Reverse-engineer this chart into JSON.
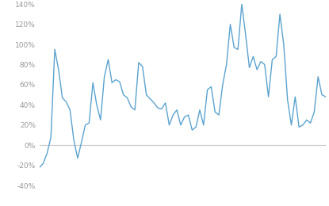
{
  "line_color": "#5ba3d0",
  "background_color": "#ffffff",
  "ylim": [
    -0.44,
    0.148
  ],
  "yticks": [
    -0.4,
    -0.2,
    0.0,
    0.2,
    0.4,
    0.6,
    0.8,
    1.0,
    1.2,
    1.4
  ],
  "zero_line_color": "#c8c8c8",
  "line_width": 1.0,
  "y_values": [
    -0.22,
    -0.18,
    -0.08,
    0.08,
    0.95,
    0.75,
    0.47,
    0.43,
    0.35,
    0.05,
    -0.13,
    0.03,
    0.2,
    0.22,
    0.62,
    0.4,
    0.25,
    0.68,
    0.85,
    0.62,
    0.65,
    0.63,
    0.5,
    0.47,
    0.38,
    0.35,
    0.82,
    0.78,
    0.5,
    0.46,
    0.42,
    0.37,
    0.36,
    0.42,
    0.2,
    0.3,
    0.35,
    0.2,
    0.28,
    0.3,
    0.15,
    0.18,
    0.35,
    0.2,
    0.55,
    0.58,
    0.33,
    0.3,
    0.6,
    0.8,
    1.2,
    0.97,
    0.95,
    1.4,
    1.1,
    0.77,
    0.88,
    0.75,
    0.83,
    0.8,
    0.48,
    0.85,
    0.88,
    1.3,
    1.0,
    0.45,
    0.2,
    0.48,
    0.18,
    0.2,
    0.25,
    0.22,
    0.33,
    0.68,
    0.5,
    0.48
  ]
}
